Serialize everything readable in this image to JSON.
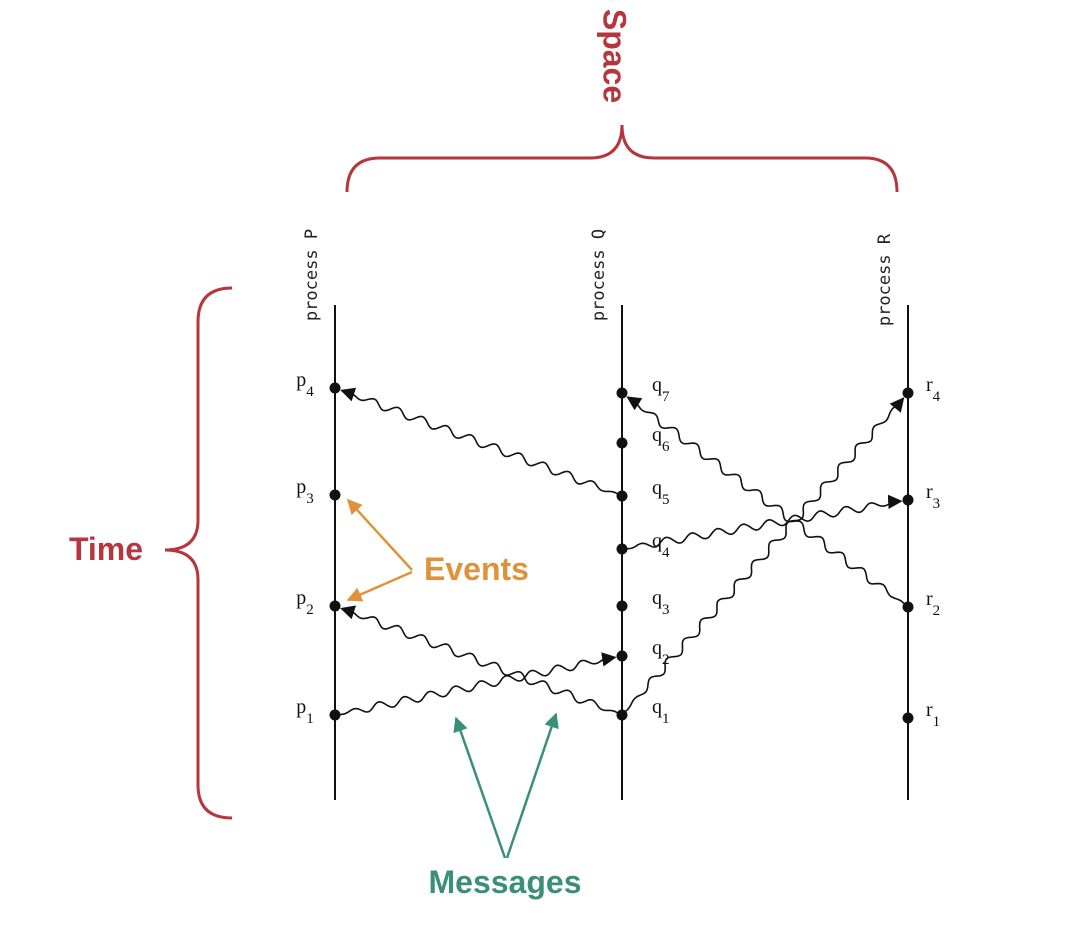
{
  "annotations": {
    "space": "Space",
    "time": "Time",
    "events": "Events",
    "messages": "Messages"
  },
  "processes": [
    {
      "label": "process P",
      "events": [
        {
          "name": "p",
          "sub": "1"
        },
        {
          "name": "p",
          "sub": "2"
        },
        {
          "name": "p",
          "sub": "3"
        },
        {
          "name": "p",
          "sub": "4"
        }
      ]
    },
    {
      "label": "process Q",
      "events": [
        {
          "name": "q",
          "sub": "1"
        },
        {
          "name": "q",
          "sub": "2"
        },
        {
          "name": "q",
          "sub": "3"
        },
        {
          "name": "q",
          "sub": "4"
        },
        {
          "name": "q",
          "sub": "5"
        },
        {
          "name": "q",
          "sub": "6"
        },
        {
          "name": "q",
          "sub": "7"
        }
      ]
    },
    {
      "label": "process R",
      "events": [
        {
          "name": "r",
          "sub": "1"
        },
        {
          "name": "r",
          "sub": "2"
        },
        {
          "name": "r",
          "sub": "3"
        },
        {
          "name": "r",
          "sub": "4"
        }
      ]
    }
  ]
}
